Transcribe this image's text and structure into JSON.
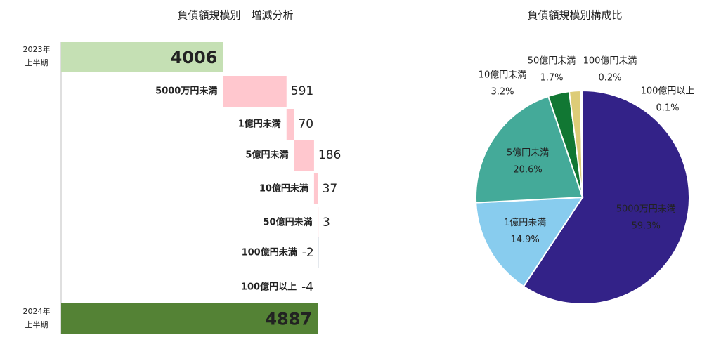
{
  "chart_data": [
    {
      "type": "waterfall",
      "title": "負債額規模別　増減分析",
      "start": {
        "label": [
          "2023年",
          "上半期"
        ],
        "value": 4006,
        "color": "#c5e0b4"
      },
      "categories": [
        "5000万円未満",
        "1億円未満",
        "5億円未満",
        "10億円未満",
        "50億円未満",
        "100億円未満",
        "100億円以上"
      ],
      "values": [
        591,
        70,
        186,
        37,
        3,
        -2,
        -4
      ],
      "increase_color": "#ffc7ce",
      "decrease_color": "#adb9ca",
      "end": {
        "label": [
          "2024年",
          "上半期"
        ],
        "value": 4887,
        "color": "#548235"
      },
      "xlim": [
        2500,
        5200
      ]
    },
    {
      "type": "pie",
      "title": "負債額規模別構成比",
      "categories": [
        "5000万円未満",
        "1億円未満",
        "5億円未満",
        "10億円未満",
        "50億円未満",
        "100億円未満",
        "100億円以上"
      ],
      "values": [
        59.3,
        14.9,
        20.6,
        3.2,
        1.7,
        0.2,
        0.1
      ],
      "value_labels": [
        "59.3%",
        "14.9%",
        "20.6%",
        "3.2%",
        "1.7%",
        "0.2%",
        "0.1%"
      ],
      "colors": [
        "#332288",
        "#88ccee",
        "#44aa99",
        "#117733",
        "#ddcc77",
        "#aa4499",
        "#cc6677"
      ]
    }
  ]
}
